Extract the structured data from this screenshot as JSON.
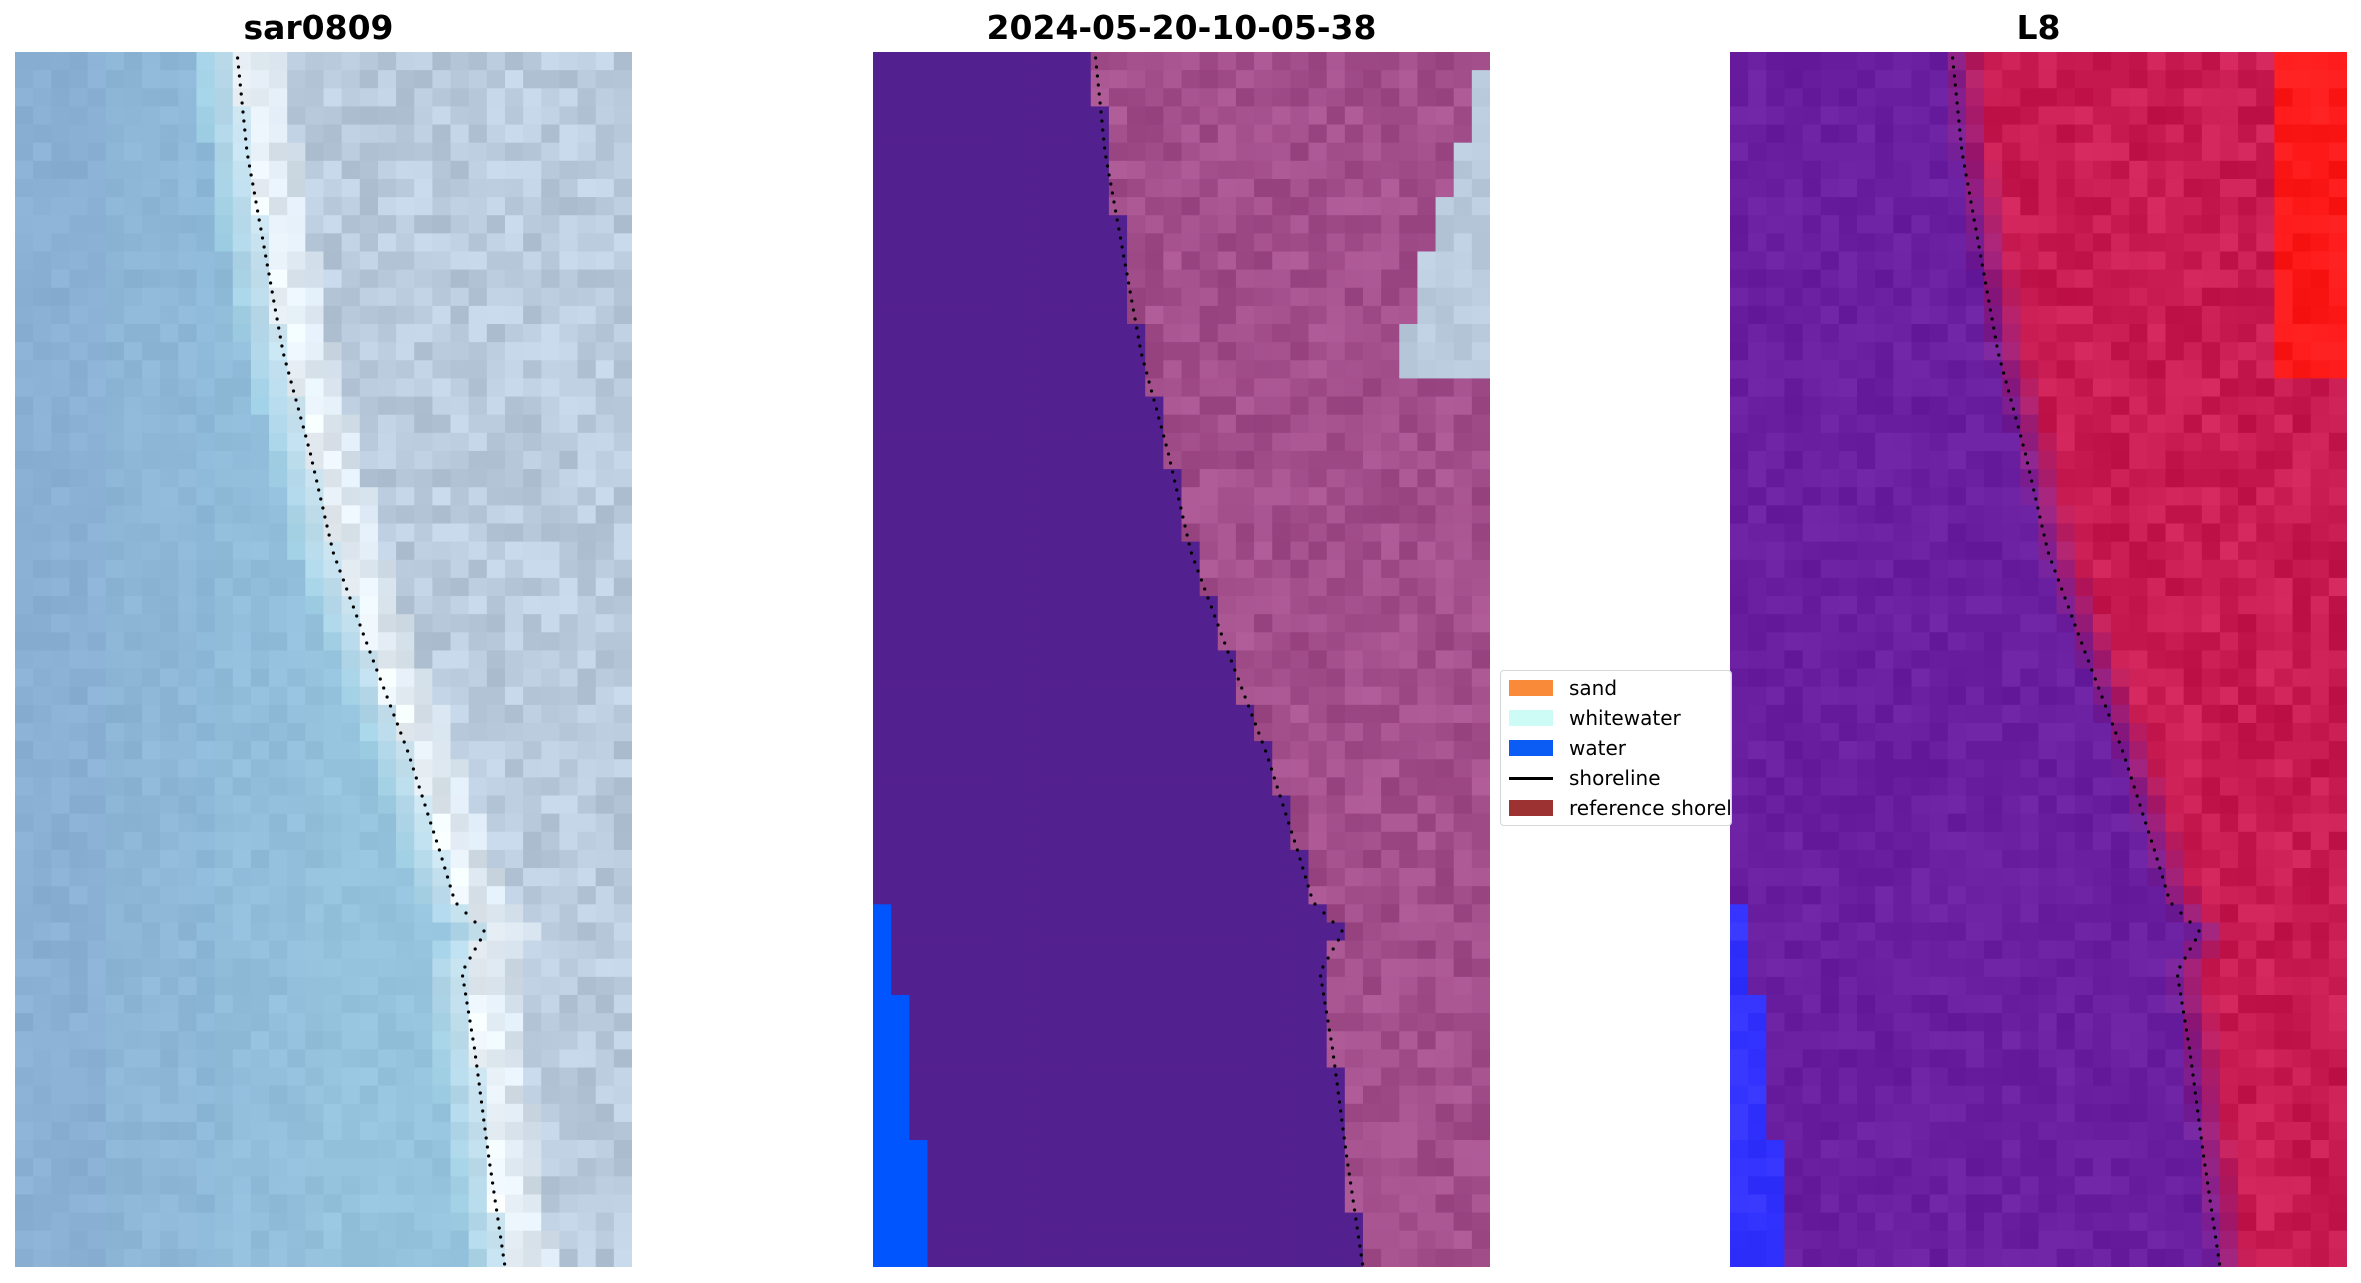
{
  "chart_data": [
    {
      "type": "image",
      "title": "sar0809",
      "style": "rgb",
      "colors": {
        "water": "#8ab1d4",
        "shallow": "#9ccde3",
        "bright": "#eef5fa",
        "land": "#b9cbdc"
      }
    },
    {
      "type": "image",
      "title": "2024-05-20-10-05-38",
      "style": "classified",
      "colors": {
        "water_class": "#53218f",
        "land": "#a34f8c",
        "rgb_land": "#b9cbdc",
        "water_edge": "#0055ff"
      }
    },
    {
      "type": "image",
      "title": "L8",
      "style": "index",
      "colors": {
        "water": "#6a1fa0",
        "land": "#c81c52",
        "hot": "#ff1a1a",
        "edge": "#3333ff"
      }
    }
  ],
  "legend": {
    "items": [
      {
        "label": "sand",
        "kind": "patch",
        "color": "#f98a3a"
      },
      {
        "label": "whitewater",
        "kind": "patch",
        "color": "#cdfcf7"
      },
      {
        "label": "water",
        "kind": "patch",
        "color": "#0a5cf5"
      },
      {
        "label": "shoreline",
        "kind": "line",
        "color": "#000000"
      },
      {
        "label": "reference shoreline",
        "kind": "patch",
        "color": "#9c3232"
      }
    ]
  }
}
